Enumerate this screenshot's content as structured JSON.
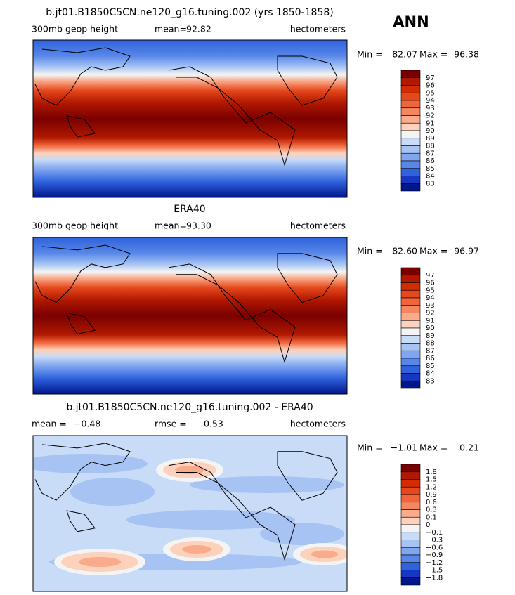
{
  "season": "ANN",
  "colorbar_colors": [
    "#7a0000",
    "#b01800",
    "#d22c00",
    "#e6481c",
    "#f0653a",
    "#f5875f",
    "#f9ab8c",
    "#fcd2bc",
    "#f4f4f4",
    "#c8dbf7",
    "#a6c3f4",
    "#7fa6ef",
    "#5787e8",
    "#2f62dd",
    "#1637c4",
    "#00168c"
  ],
  "panels": [
    {
      "title": "b.jt01.B1850C5CN.ne120_g16.tuning.002 (yrs 1850-1858)",
      "left_label": "300mb geop height",
      "stat1_label": "mean=",
      "stat1_value": "92.82",
      "units": "hectometers",
      "min_label": "Min =",
      "min_value": "82.07",
      "max_label": "Max =",
      "max_value": "96.38",
      "levels": [
        "97",
        "96",
        "95",
        "94",
        "93",
        "92",
        "91",
        "90",
        "89",
        "88",
        "87",
        "86",
        "85",
        "84",
        "83"
      ]
    },
    {
      "title": "ERA40",
      "left_label": "300mb geop height",
      "stat1_label": "mean=",
      "stat1_value": "93.30",
      "units": "hectometers",
      "min_label": "Min =",
      "min_value": "82.60",
      "max_label": "Max =",
      "max_value": "96.97",
      "levels": [
        "97",
        "96",
        "95",
        "94",
        "93",
        "92",
        "91",
        "90",
        "89",
        "88",
        "87",
        "86",
        "85",
        "84",
        "83"
      ]
    },
    {
      "title": "b.jt01.B1850C5CN.ne120_g16.tuning.002 - ERA40",
      "stat1_label": "mean =",
      "stat1_value": "−0.48",
      "stat2_label": "rmse =",
      "stat2_value": "0.53",
      "units": "hectometers",
      "min_label": "Min =",
      "min_value": "−1.01",
      "max_label": "Max =",
      "max_value": "0.21",
      "levels": [
        "1.8",
        "1.5",
        "1.2",
        "0.9",
        "0.6",
        "0.3",
        "0.1",
        "0",
        "−0.1",
        "−0.3",
        "−0.6",
        "−0.9",
        "−1.2",
        "−1.5",
        "−1.8"
      ]
    }
  ]
}
